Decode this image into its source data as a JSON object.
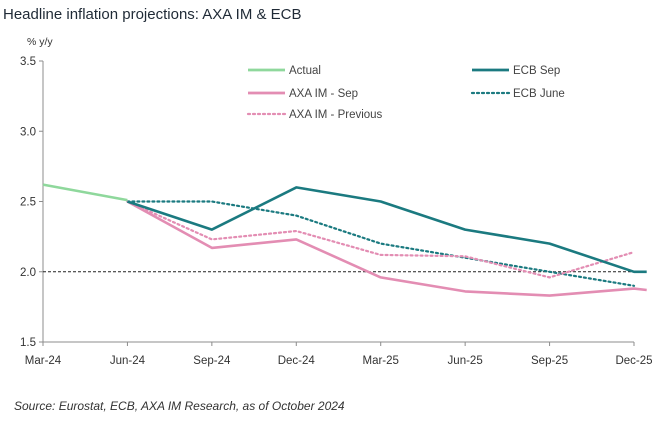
{
  "title": "Headline inflation projections: AXA IM & ECB",
  "source": "Source: Eurostat, ECB, AXA IM Research, as of October 2024",
  "chart_data": {
    "type": "line",
    "title": "Headline inflation projections: AXA IM & ECB",
    "ylabel": "% y/y",
    "xlabel": "",
    "categories": [
      "Mar-24",
      "Jun-24",
      "Sep-24",
      "Dec-24",
      "Mar-25",
      "Jun-25",
      "Sep-25",
      "Dec-25"
    ],
    "ylim": [
      1.5,
      3.5
    ],
    "yticks": [
      "1.5",
      "2.0",
      "2.5",
      "3.0",
      "3.5"
    ],
    "reference_line": 2.0,
    "grid": false,
    "legend_position": "top",
    "series": [
      {
        "name": "Actual",
        "style": "solid",
        "color": "#8fd89c",
        "x": [
          0,
          1
        ],
        "values": [
          2.62,
          2.51
        ]
      },
      {
        "name": "ECB Sep",
        "style": "solid",
        "color": "#1b7a80",
        "x": [
          1,
          2,
          3,
          4,
          5,
          6,
          7,
          7.15
        ],
        "values": [
          2.5,
          2.3,
          2.6,
          2.5,
          2.3,
          2.2,
          2.0,
          2.0
        ]
      },
      {
        "name": "AXA IM - Sep",
        "style": "solid",
        "color": "#e38db3",
        "x": [
          1,
          2,
          3,
          4,
          5,
          6,
          7,
          7.15
        ],
        "values": [
          2.5,
          2.17,
          2.23,
          1.96,
          1.86,
          1.83,
          1.88,
          1.87
        ]
      },
      {
        "name": "ECB June",
        "style": "dotted",
        "color": "#1b7a80",
        "x": [
          1,
          2,
          3,
          4,
          5,
          6,
          7
        ],
        "values": [
          2.5,
          2.5,
          2.4,
          2.2,
          2.1,
          2.0,
          1.9
        ]
      },
      {
        "name": "AXA IM - Previous",
        "style": "dotted",
        "color": "#e38db3",
        "x": [
          1,
          2,
          3,
          4,
          5,
          6,
          7
        ],
        "values": [
          2.5,
          2.23,
          2.29,
          2.12,
          2.11,
          1.96,
          2.14
        ]
      }
    ]
  }
}
